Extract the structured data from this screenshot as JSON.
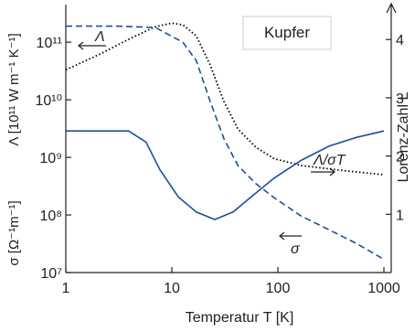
{
  "chart_data": {
    "type": "line",
    "annotation": "Kupfer",
    "xlabel": "Temperatur T [K]",
    "ylabel_lower": "σ [Ω⁻¹m⁻¹]",
    "ylabel_upper": "Λ [10¹¹ W m⁻¹ K⁻¹]",
    "y2label": "Lorenz-Zahl L",
    "xscale": "log",
    "yscale": "log",
    "xlim": [
      1,
      1000
    ],
    "xticks": [
      1,
      10,
      100,
      1000
    ],
    "ylim": [
      10000000,
      450000000000
    ],
    "yticks": [
      {
        "value": 10000000,
        "label": "10⁷"
      },
      {
        "value": 100000000,
        "label": "10⁸"
      },
      {
        "value": 1000000000,
        "label": "10⁹"
      },
      {
        "value": 10000000000,
        "label": "10¹⁰"
      },
      {
        "value": 100000000000,
        "label": "10¹¹"
      }
    ],
    "y2lim": [
      0,
      4.6
    ],
    "y2ticks": [
      1,
      2,
      3,
      4
    ],
    "series": [
      {
        "name": "Λ",
        "color": "#000000",
        "style": "dotted",
        "axis": "y",
        "x": [
          1,
          2.1,
          3.9,
          7,
          10,
          12.7,
          17,
          23,
          31,
          42,
          62,
          92,
          167,
          450,
          1000
        ],
        "values": [
          33000000000,
          62000000000,
          112000000000,
          186000000000,
          214000000000,
          200000000000,
          129000000000,
          40000000000,
          9300000000,
          3100000000,
          1500000000,
          950000000,
          720000000,
          580000000,
          500000000
        ]
      },
      {
        "name": "σ",
        "color": "#1f4e9c",
        "style": "dashed",
        "axis": "y",
        "x": [
          1,
          3,
          7,
          12.7,
          17,
          23,
          31,
          42,
          62,
          92,
          167,
          300,
          550,
          1000
        ],
        "values": [
          190000000000,
          190000000000,
          180000000000,
          100000000000,
          48000000000,
          9300000000,
          2100000000,
          720000000,
          350000000,
          200000000,
          95000000,
          56000000,
          32000000,
          17000000
        ]
      },
      {
        "name": "Λ/σT",
        "color": "#1f4e9c",
        "style": "solid",
        "axis": "y2",
        "x": [
          1,
          3.9,
          5.7,
          7.7,
          11.5,
          17,
          25.4,
          37.8,
          56,
          92,
          167,
          304,
          551,
          1000
        ],
        "values": [
          2.43,
          2.43,
          2.24,
          1.77,
          1.3,
          1.04,
          0.91,
          1.04,
          1.3,
          1.62,
          1.93,
          2.17,
          2.32,
          2.43
        ]
      }
    ]
  }
}
